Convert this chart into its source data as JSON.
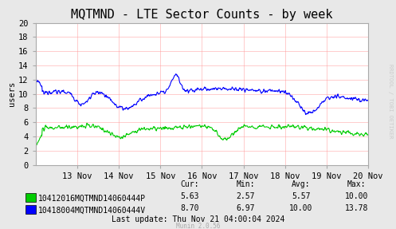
{
  "title": "MQTMND - LTE Sector Counts - by week",
  "ylabel": "users",
  "background_color": "#e8e8e8",
  "plot_bg_color": "#ffffff",
  "grid_color": "#ff9999",
  "ylim": [
    0,
    20
  ],
  "yticks": [
    0,
    2,
    4,
    6,
    8,
    10,
    12,
    14,
    16,
    18,
    20
  ],
  "x_labels": [
    "13 Nov",
    "14 Nov",
    "15 Nov",
    "16 Nov",
    "17 Nov",
    "18 Nov",
    "19 Nov",
    "20 Nov"
  ],
  "line1_color": "#00cc00",
  "line2_color": "#0000ff",
  "line1_label": "10412016MQTMND14060444P",
  "line2_label": "10418004MQTMND14060444V",
  "cur1": "5.63",
  "min1": "2.57",
  "avg1": "5.57",
  "max1": "10.00",
  "cur2": "8.70",
  "min2": "6.97",
  "avg2": "10.00",
  "max2": "13.78",
  "last_update": "Last update: Thu Nov 21 04:00:04 2024",
  "munin_version": "Munin 2.0.56",
  "rrdtool_label": "RRDTOOL / TOBI OETIKER",
  "title_fontsize": 11,
  "axis_fontsize": 7.5,
  "legend_fontsize": 7,
  "n_points": 800
}
